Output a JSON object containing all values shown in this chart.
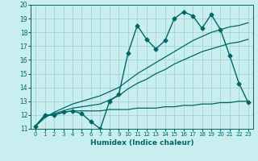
{
  "xlabel": "Humidex (Indice chaleur)",
  "xlim": [
    -0.5,
    23.5
  ],
  "ylim": [
    11,
    20
  ],
  "xticks": [
    0,
    1,
    2,
    3,
    4,
    5,
    6,
    7,
    8,
    9,
    10,
    11,
    12,
    13,
    14,
    15,
    16,
    17,
    18,
    19,
    20,
    21,
    22,
    23
  ],
  "yticks": [
    11,
    12,
    13,
    14,
    15,
    16,
    17,
    18,
    19,
    20
  ],
  "background_color": "#c8eef0",
  "grid_color": "#9ecece",
  "line_color": "#006666",
  "series": [
    {
      "x": [
        0,
        1,
        2,
        3,
        4,
        5,
        6,
        7,
        8,
        9,
        10,
        11,
        12,
        13,
        14,
        15,
        16,
        17,
        18,
        19,
        20,
        21,
        22,
        23
      ],
      "y": [
        11.2,
        12.0,
        12.0,
        12.2,
        12.3,
        12.1,
        11.5,
        11.0,
        13.0,
        13.5,
        16.5,
        18.5,
        17.5,
        16.8,
        17.4,
        19.0,
        19.5,
        19.2,
        18.3,
        19.3,
        18.2,
        16.3,
        14.3,
        12.9
      ],
      "marker": "D",
      "markersize": 2.5,
      "linewidth": 1.0
    },
    {
      "x": [
        0,
        1,
        2,
        3,
        4,
        5,
        6,
        7,
        8,
        9,
        10,
        11,
        12,
        13,
        14,
        15,
        16,
        17,
        18,
        19,
        20,
        21,
        22,
        23
      ],
      "y": [
        11.2,
        12.0,
        12.0,
        12.2,
        12.3,
        12.3,
        12.3,
        12.3,
        12.4,
        12.4,
        12.4,
        12.5,
        12.5,
        12.5,
        12.6,
        12.6,
        12.7,
        12.7,
        12.8,
        12.8,
        12.9,
        12.9,
        13.0,
        13.0
      ],
      "marker": null,
      "markersize": 0,
      "linewidth": 0.9
    },
    {
      "x": [
        0,
        1,
        2,
        3,
        4,
        5,
        6,
        7,
        8,
        9,
        10,
        11,
        12,
        13,
        14,
        15,
        16,
        17,
        18,
        19,
        20,
        21,
        22,
        23
      ],
      "y": [
        11.2,
        11.8,
        12.2,
        12.5,
        12.8,
        13.0,
        13.2,
        13.4,
        13.7,
        14.0,
        14.5,
        15.0,
        15.4,
        15.8,
        16.2,
        16.6,
        17.0,
        17.4,
        17.7,
        18.0,
        18.2,
        18.4,
        18.5,
        18.7
      ],
      "marker": null,
      "markersize": 0,
      "linewidth": 0.9
    },
    {
      "x": [
        0,
        1,
        2,
        3,
        4,
        5,
        6,
        7,
        8,
        9,
        10,
        11,
        12,
        13,
        14,
        15,
        16,
        17,
        18,
        19,
        20,
        21,
        22,
        23
      ],
      "y": [
        11.2,
        11.9,
        12.1,
        12.3,
        12.5,
        12.6,
        12.7,
        12.8,
        13.1,
        13.4,
        13.9,
        14.3,
        14.6,
        15.0,
        15.3,
        15.7,
        16.0,
        16.3,
        16.6,
        16.8,
        17.0,
        17.2,
        17.3,
        17.5
      ],
      "marker": null,
      "markersize": 0,
      "linewidth": 0.9
    }
  ]
}
